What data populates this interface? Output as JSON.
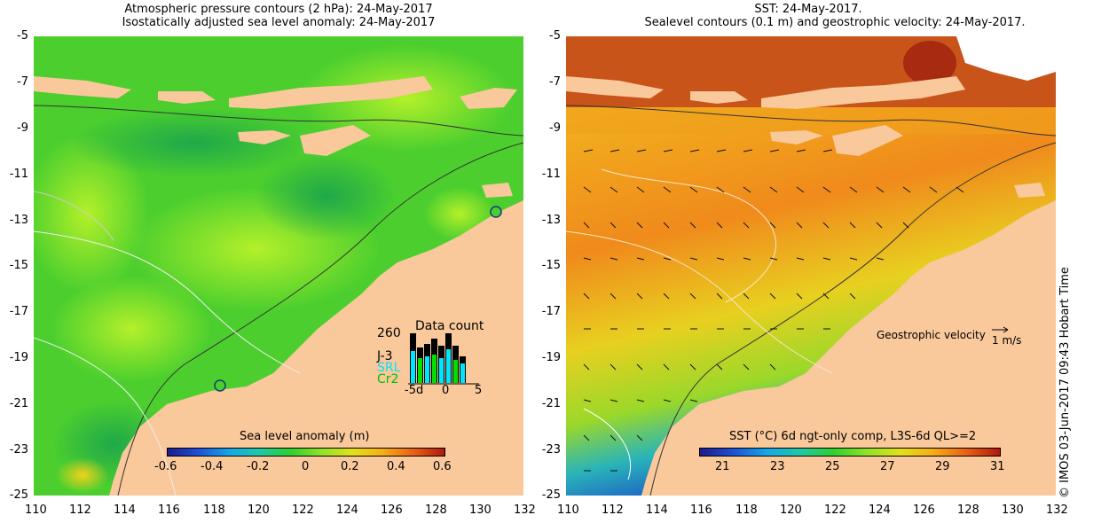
{
  "left_panel": {
    "title_line1": "Atmospheric pressure contours (2 hPa): 24-May-2017",
    "title_line2": "Isostatically adjusted sea level anomaly: 24-May-2017",
    "colorbar": {
      "label": "Sea level anomaly (m)",
      "ticks": [
        "-0.6",
        "-0.4",
        "-0.2",
        "0",
        "0.2",
        "0.4",
        "0.6"
      ]
    },
    "data_count": {
      "title": "Data count",
      "max_label": "260",
      "series": [
        {
          "name": "J-3",
          "color": "#000000"
        },
        {
          "name": "SRL",
          "color": "#00e5ff"
        },
        {
          "name": "Cr2",
          "color": "#00e000"
        }
      ],
      "axis_ticks": [
        "-5d",
        "0",
        "5"
      ]
    }
  },
  "right_panel": {
    "title_line1": "SST: 24-May-2017.",
    "title_line2": "Sealevel contours (0.1 m) and geostrophic velocity: 24-May-2017.",
    "colorbar": {
      "label": "SST (°C) 6d ngt-only comp, L3S-6d QL>=2",
      "ticks": [
        "21",
        "23",
        "25",
        "27",
        "29",
        "31"
      ]
    },
    "velocity_label": "Geostrophic velocity",
    "velocity_unit": "1 m/s"
  },
  "axes": {
    "lat_ticks": [
      "-5",
      "-7",
      "-9",
      "-11",
      "-13",
      "-15",
      "-17",
      "-19",
      "-21",
      "-23",
      "-25"
    ],
    "lon_ticks": [
      "110",
      "112",
      "114",
      "116",
      "118",
      "120",
      "122",
      "124",
      "126",
      "128",
      "130",
      "132"
    ]
  },
  "credit": "© IMOS 03-Jun-2017 09:43 Hobart Time",
  "colors": {
    "land": "#f9c89b",
    "sla_green": "#3fce2a",
    "sst_orange": "#f08a1c"
  }
}
